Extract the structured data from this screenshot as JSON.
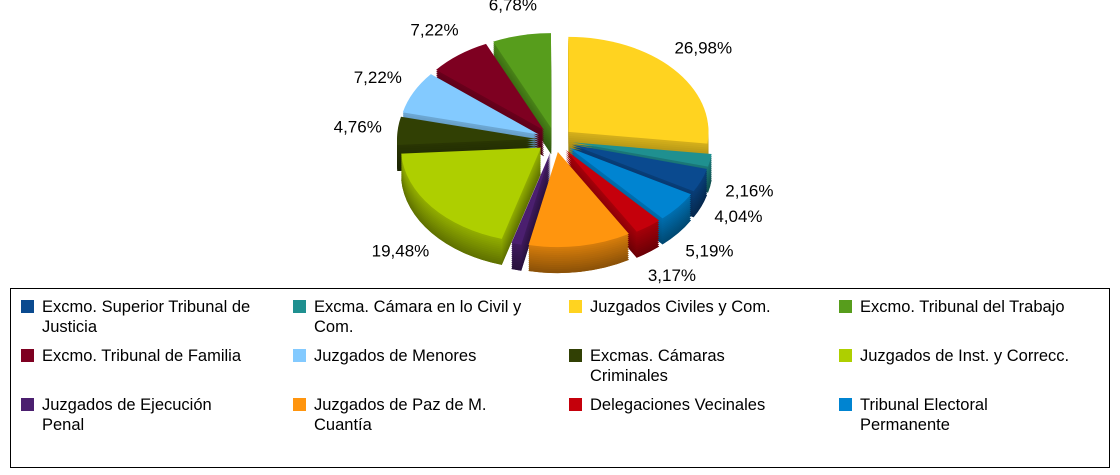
{
  "chart_data": {
    "type": "pie3d",
    "series": [
      {
        "name": "Excmo. Superior Tribunal de Justicia",
        "color": "#0a4a8f",
        "value": 4.04,
        "value_label": "4,04%"
      },
      {
        "name": "Excma. Cámara en lo Civil y Com.",
        "color": "#1f9090",
        "value": 2.16,
        "value_label": "2,16%"
      },
      {
        "name": "Juzgados Civiles y Com.",
        "color": "#ffd320",
        "value": 26.98,
        "value_label": "26,98%"
      },
      {
        "name": "Excmo. Tribunal del Trabajo",
        "color": "#579d1c",
        "value": 6.78,
        "value_label": "6,78%"
      },
      {
        "name": "Excmo. Tribunal de Familia",
        "color": "#7e0021",
        "value": 7.22,
        "value_label": "7,22%"
      },
      {
        "name": "Juzgados de Menores",
        "color": "#83caff",
        "value": 7.22,
        "value_label": "7,22%"
      },
      {
        "name": "Excmas. Cámaras Criminales",
        "color": "#314004",
        "value": 4.76,
        "value_label": "4,76%"
      },
      {
        "name": "Juzgados de Inst. y Correcc.",
        "color": "#aecf00",
        "value": 19.48,
        "value_label": "19,48%"
      },
      {
        "name": "Juzgados de Ejecución Penal",
        "color": "#4b1f6f",
        "value": 1.15,
        "value_label": "1,15%"
      },
      {
        "name": "Juzgados de Paz de M. Cuantía",
        "color": "#ff950e",
        "value": 11.83,
        "value_label": "11,83%"
      },
      {
        "name": "Delegaciones Vecinales",
        "color": "#c5000b",
        "value": 3.17,
        "value_label": "3,17%"
      },
      {
        "name": "Tribunal Electoral Permanente",
        "color": "#0084d1",
        "value": 5.19,
        "value_label": "5,19%"
      }
    ]
  }
}
